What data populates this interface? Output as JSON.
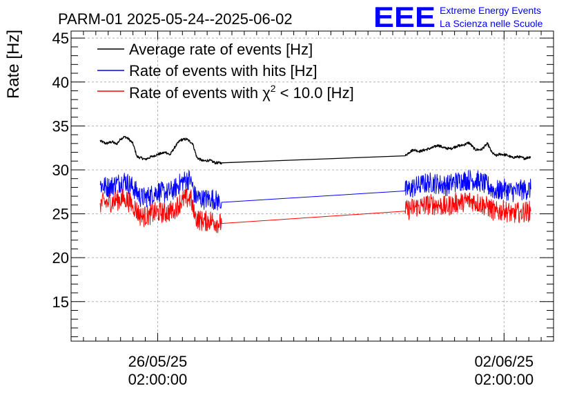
{
  "chart_data": {
    "type": "line",
    "title": "PARM-01 2025-05-24--2025-06-02",
    "ylabel": "Rate [Hz]",
    "xlabel": "",
    "ylim": [
      10.5,
      45.8
    ],
    "xlim": [
      "2025-05-24 08:00",
      "2025-06-03 02:00"
    ],
    "yticks": [
      15,
      20,
      25,
      30,
      35,
      40,
      45
    ],
    "ytick_labels": [
      "15",
      "20",
      "25",
      "30",
      "35",
      "40",
      "45"
    ],
    "xticks": [
      "2025-05-26 02:00",
      "2025-06-02 02:00"
    ],
    "xtick_labels": [
      {
        "date": "26/05/25",
        "time": "02:00:00"
      },
      {
        "date": "02/06/25",
        "time": "02:00:00"
      }
    ],
    "grid": true,
    "legend_position": "top-left",
    "logo": {
      "mark": "EEE",
      "line1": "Extreme Energy Events",
      "line2": "La Scienza nelle Scuole",
      "color": "#0000ff"
    },
    "legend": [
      {
        "label": "Average rate of events [Hz]",
        "color": "#000000"
      },
      {
        "label": "Rate of events with hits [Hz]",
        "color": "#0000ff"
      },
      {
        "label_main": "Rate of events with χ",
        "label_sup": "2",
        "label_end": " < 10.0 [Hz]",
        "color": "#ff0000"
      }
    ],
    "series": [
      {
        "color": "#000000",
        "noise": 0.15,
        "x": [
          "2025-05-24 22:00",
          "2025-05-25 01:00",
          "2025-05-25 04:00",
          "2025-05-25 06:00",
          "2025-05-25 08:00",
          "2025-05-25 10:00",
          "2025-05-25 12:00",
          "2025-05-25 14:00",
          "2025-05-25 16:00",
          "2025-05-25 20:00",
          "2025-05-26 00:00",
          "2025-05-26 04:00",
          "2025-05-26 06:00",
          "2025-05-26 08:00",
          "2025-05-26 10:00",
          "2025-05-26 13:00",
          "2025-05-26 16:00",
          "2025-05-26 19:00",
          "2025-05-26 21:00",
          "2025-05-27 00:00",
          "2025-05-27 03:00",
          "2025-05-27 06:00",
          "2025-05-27 09:00",
          "2025-05-31 02:00",
          "2025-05-31 04:00",
          "2025-05-31 06:00",
          "2025-05-31 09:00",
          "2025-05-31 12:00",
          "2025-05-31 15:00",
          "2025-05-31 18:00",
          "2025-05-31 21:00",
          "2025-06-01 00:00",
          "2025-06-01 03:00",
          "2025-06-01 06:00",
          "2025-06-01 09:00",
          "2025-06-01 12:00",
          "2025-06-01 15:00",
          "2025-06-01 18:00",
          "2025-06-01 20:00",
          "2025-06-01 22:00",
          "2025-06-02 00:00",
          "2025-06-02 03:00",
          "2025-06-02 06:00",
          "2025-06-02 09:00",
          "2025-06-02 12:00",
          "2025-06-02 15:00"
        ],
        "y": [
          33.3,
          33.0,
          33.2,
          32.9,
          33.5,
          33.8,
          33.5,
          33.0,
          31.5,
          31.2,
          31.6,
          31.9,
          32.0,
          31.7,
          32.5,
          33.4,
          33.5,
          33.0,
          31.4,
          31.0,
          31.1,
          30.8,
          30.8,
          31.6,
          32.0,
          32.3,
          32.1,
          32.3,
          32.5,
          32.8,
          32.5,
          32.4,
          32.7,
          32.8,
          33.1,
          32.3,
          32.3,
          33.0,
          32.0,
          31.6,
          31.8,
          31.7,
          31.4,
          31.5,
          31.3,
          31.5
        ]
      },
      {
        "color": "#0000ff",
        "noise": 1.2,
        "x": [
          "2025-05-24 22:00",
          "2025-05-25 02:00",
          "2025-05-25 06:00",
          "2025-05-25 10:00",
          "2025-05-25 14:00",
          "2025-05-25 18:00",
          "2025-05-25 22:00",
          "2025-05-26 02:00",
          "2025-05-26 06:00",
          "2025-05-26 10:00",
          "2025-05-26 14:00",
          "2025-05-26 18:00",
          "2025-05-26 20:00",
          "2025-05-27 00:00",
          "2025-05-27 04:00",
          "2025-05-27 08:00",
          "2025-05-27 09:00",
          "2025-05-31 02:00",
          "2025-05-31 06:00",
          "2025-05-31 10:00",
          "2025-05-31 14:00",
          "2025-05-31 18:00",
          "2025-05-31 22:00",
          "2025-06-01 02:00",
          "2025-06-01 06:00",
          "2025-06-01 10:00",
          "2025-06-01 14:00",
          "2025-06-01 18:00",
          "2025-06-01 22:00",
          "2025-06-02 02:00",
          "2025-06-02 06:00",
          "2025-06-02 10:00",
          "2025-06-02 15:00"
        ],
        "y": [
          28.3,
          28.0,
          28.4,
          28.8,
          28.0,
          26.8,
          27.0,
          27.6,
          27.3,
          27.8,
          28.7,
          29.0,
          27.0,
          26.6,
          26.8,
          26.3,
          26.3,
          27.6,
          28.0,
          28.3,
          28.6,
          28.4,
          28.2,
          28.6,
          28.8,
          28.9,
          28.7,
          28.2,
          27.6,
          27.8,
          27.5,
          27.7,
          27.8
        ]
      },
      {
        "color": "#ff0000",
        "noise": 1.2,
        "x": [
          "2025-05-24 22:00",
          "2025-05-25 02:00",
          "2025-05-25 06:00",
          "2025-05-25 10:00",
          "2025-05-25 14:00",
          "2025-05-25 18:00",
          "2025-05-25 22:00",
          "2025-05-26 02:00",
          "2025-05-26 06:00",
          "2025-05-26 10:00",
          "2025-05-26 14:00",
          "2025-05-26 18:00",
          "2025-05-26 20:00",
          "2025-05-27 00:00",
          "2025-05-27 04:00",
          "2025-05-27 08:00",
          "2025-05-27 09:00",
          "2025-05-31 02:00",
          "2025-05-31 06:00",
          "2025-05-31 10:00",
          "2025-05-31 14:00",
          "2025-05-31 18:00",
          "2025-05-31 22:00",
          "2025-06-01 02:00",
          "2025-06-01 06:00",
          "2025-06-01 10:00",
          "2025-06-01 14:00",
          "2025-06-01 18:00",
          "2025-06-01 22:00",
          "2025-06-02 02:00",
          "2025-06-02 06:00",
          "2025-06-02 10:00",
          "2025-06-02 15:00"
        ],
        "y": [
          26.2,
          26.3,
          26.5,
          26.8,
          26.0,
          24.6,
          24.9,
          25.2,
          25.1,
          25.5,
          26.6,
          26.8,
          24.6,
          24.1,
          24.3,
          23.9,
          23.9,
          25.3,
          25.7,
          25.9,
          26.1,
          26.0,
          25.8,
          26.2,
          26.4,
          26.5,
          26.2,
          25.8,
          25.2,
          25.4,
          25.0,
          25.2,
          25.3
        ]
      }
    ]
  }
}
